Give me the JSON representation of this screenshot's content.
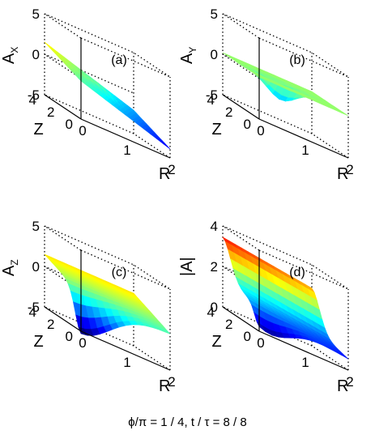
{
  "chart_data": [
    {
      "type": "surface",
      "panel_label": "(a)",
      "zlabel": "A",
      "zlabel_sub": "X",
      "xlabel": "R",
      "ylabel": "Z",
      "ztick_labels": [
        "5",
        "0",
        "-5"
      ],
      "zlim": [
        -5,
        5
      ],
      "xtick_labels": [
        "0",
        "1",
        "2"
      ],
      "xlim": [
        0,
        2
      ],
      "ytick_labels": [
        "0",
        "2",
        "4"
      ],
      "ylim": [
        0,
        4
      ],
      "colormap": "jet",
      "surface": {
        "base": 0.6,
        "slope_r": -1.8,
        "slope_z": 0.9,
        "dip": 0.6,
        "dip_r": 0.85,
        "dip_z": 2.3,
        "dip_w": 0.35
      }
    },
    {
      "type": "surface",
      "panel_label": "(b)",
      "zlabel": "A",
      "zlabel_sub": "Y",
      "xlabel": "R",
      "ylabel": "Z",
      "ztick_labels": [
        "5",
        "0",
        "-5"
      ],
      "zlim": [
        -5,
        5
      ],
      "xtick_labels": [
        "0",
        "1",
        "2"
      ],
      "xlim": [
        0,
        2
      ],
      "ytick_labels": [
        "0",
        "2",
        "4"
      ],
      "ylim": [
        0,
        4
      ],
      "colormap": "jet",
      "surface": {
        "base": 0.2,
        "slope_r": 0.0,
        "slope_z": 0.0,
        "dip": -2.2,
        "dip_r": 0.9,
        "dip_z": 2.0,
        "dip_w": 0.45
      }
    },
    {
      "type": "surface",
      "panel_label": "(c)",
      "zlabel": "A",
      "zlabel_sub": "Z",
      "xlabel": "R",
      "ylabel": "Z",
      "ztick_labels": [
        "5",
        "0",
        "-5"
      ],
      "zlim": [
        -5,
        5
      ],
      "xtick_labels": [
        "0",
        "1",
        "2"
      ],
      "xlim": [
        0,
        2
      ],
      "ytick_labels": [
        "0",
        "2",
        "4"
      ],
      "ylim": [
        0,
        4
      ],
      "colormap": "jet",
      "surface": {
        "base": 0.5,
        "slope_r": 0.0,
        "slope_z": 1.0,
        "dip": -4.8,
        "dip_r": 0.0,
        "dip_z": 0.0,
        "dip_w": 0.9
      }
    },
    {
      "type": "surface",
      "panel_label": "(d)",
      "zlabel": "|A|",
      "zlabel_sub": "",
      "xlabel": "R",
      "ylabel": "Z",
      "ztick_labels": [
        "4",
        "2",
        "0"
      ],
      "zlim": [
        0,
        4
      ],
      "xtick_labels": [
        "0",
        "1",
        "2"
      ],
      "xlim": [
        0,
        2
      ],
      "ytick_labels": [
        "0",
        "2",
        "4"
      ],
      "ylim": [
        0,
        4
      ],
      "colormap": "jet",
      "surface": {
        "base": 1.4,
        "slope_r": -0.3,
        "slope_z": 0.25,
        "ridge": 1.8,
        "ridge_z": 4.0,
        "ridge_w": 1.2,
        "dip": -1.0,
        "dip_r": 0.2,
        "dip_z": 0.0,
        "dip_w": 0.7
      }
    }
  ],
  "caption": "ϕ/π = 1 / 4, t / τ = 8 / 8"
}
